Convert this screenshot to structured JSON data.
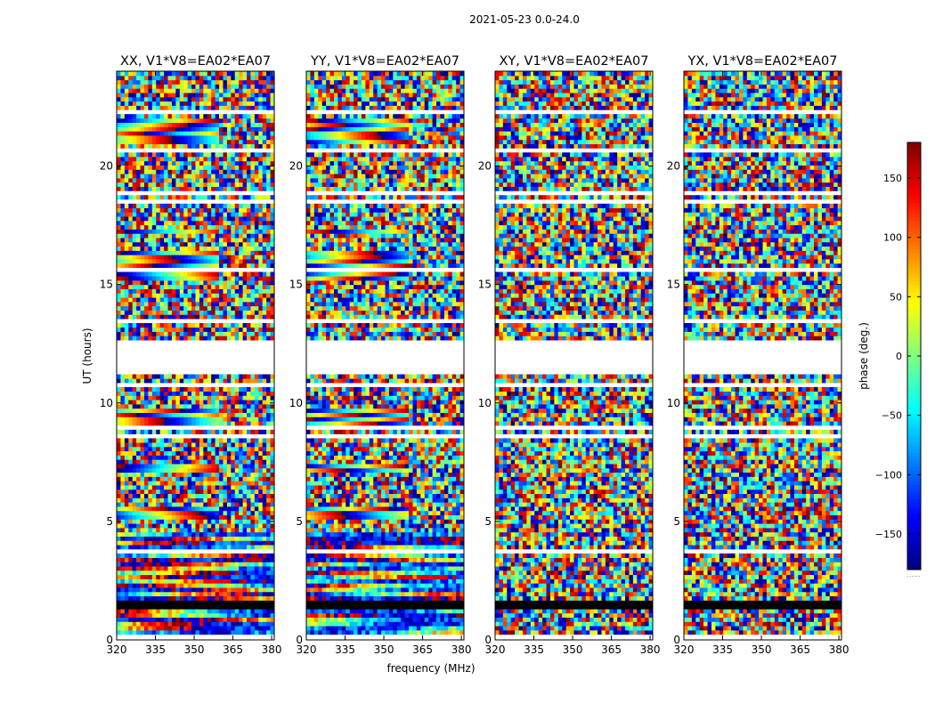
{
  "figure": {
    "suptitle": "2021-05-23 0.0-24.0",
    "ylabel": "UT (hours)",
    "xlabel": "frequency (MHz)",
    "colorbar_label": "phase (deg.)",
    "colorbar_note": "......"
  },
  "chart_data": {
    "type": "heatmap",
    "colormap": "jet",
    "value_label": "phase (deg.)",
    "value_range": [
      -180,
      180
    ],
    "colorbar_ticks": [
      -150,
      -100,
      -50,
      0,
      50,
      100,
      150
    ],
    "colorbar_tick_labels": [
      "−150",
      "−100",
      "−50",
      "0",
      "50",
      "100",
      "150"
    ],
    "x_range": [
      320,
      381
    ],
    "y_range": [
      0,
      24
    ],
    "x_ticks": [
      320,
      335,
      350,
      365,
      380
    ],
    "x_tick_labels": [
      "320",
      "335",
      "350",
      "365",
      "380"
    ],
    "y_ticks": [
      0,
      5,
      10,
      15,
      20
    ],
    "y_tick_labels": [
      "0",
      "5",
      "10",
      "15",
      "20"
    ],
    "flagged_gap_hours": [
      11.2,
      12.6
    ],
    "flagged_black_hours": [
      1.2,
      1.5
    ],
    "panels": [
      {
        "title": "XX, V1*V8=EA02*EA07",
        "polarization": "XX"
      },
      {
        "title": "YY, V1*V8=EA02*EA07",
        "polarization": "YY"
      },
      {
        "title": "XY, V1*V8=EA02*EA07",
        "polarization": "XY"
      },
      {
        "title": "YX, V1*V8=EA02*EA07",
        "polarization": "YX"
      }
    ]
  }
}
